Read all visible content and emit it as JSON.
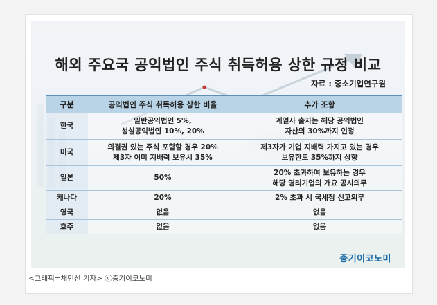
{
  "title": "해외 주요국 공익법인 주식 취득허용 상한 규정 비교",
  "source": "자료 : 중소기업연구원",
  "table": {
    "headers": [
      "구분",
      "공익법인 주식 취득허용 상한 비율",
      "추가 조항"
    ],
    "rows": [
      {
        "country": "한국",
        "ratio": [
          "일반공익법인 5%,",
          "성실공익법인 10%, 20%"
        ],
        "extra": [
          "계열사 출자는 해당 공익법인",
          "자산의 30%까지 인정"
        ]
      },
      {
        "country": "미국",
        "ratio": [
          "의결권 있는 주식 포함할 경우 20%",
          "제3자 이미 지배력 보유시 35%"
        ],
        "extra": [
          "제3자가 기업 지배력 가지고 있는 경우",
          "보유한도 35%까지 상향"
        ]
      },
      {
        "country": "일본",
        "ratio": [
          "50%"
        ],
        "extra": [
          "20% 초과하여 보유하는 경우",
          "해당 영리기업의 개요 공시의무"
        ]
      },
      {
        "country": "캐나다",
        "ratio": [
          "20%"
        ],
        "extra": [
          "2% 초과 시 국세청 신고의무"
        ]
      },
      {
        "country": "영국",
        "ratio": [
          "없음"
        ],
        "extra": [
          "없음"
        ]
      },
      {
        "country": "호주",
        "ratio": [
          "없음"
        ],
        "extra": [
          "없음"
        ]
      }
    ]
  },
  "logo": "중기이코노미",
  "caption": "<그래픽=채민선 기자>  ⓒ중기이코노미",
  "colors": {
    "header_bg": "#b9d3e7",
    "logo": "#1c6aa8"
  }
}
